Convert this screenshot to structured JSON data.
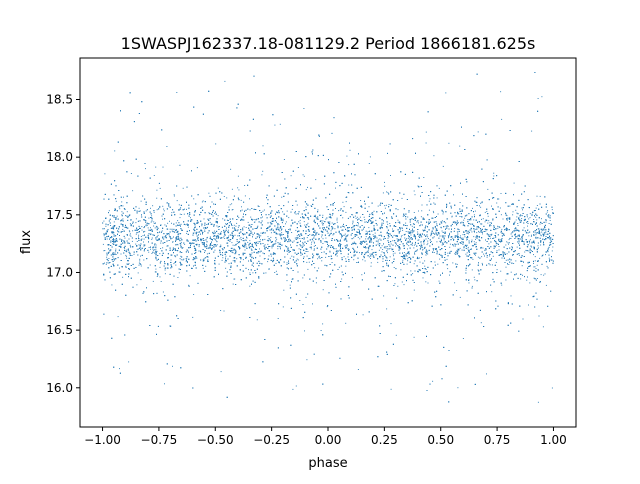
{
  "chart_data": {
    "type": "scatter",
    "title": "1SWASPJ162337.18-081129.2 Period 1866181.625s",
    "xlabel": "phase",
    "ylabel": "flux",
    "xlim": [
      -1.1,
      1.1
    ],
    "ylim": [
      15.66,
      18.86
    ],
    "x_ticks": [
      -1.0,
      -0.75,
      -0.5,
      -0.25,
      0.0,
      0.25,
      0.5,
      0.75,
      1.0
    ],
    "x_tick_labels": [
      "−1.00",
      "−0.75",
      "−0.50",
      "−0.25",
      "0.00",
      "0.25",
      "0.50",
      "0.75",
      "1.00"
    ],
    "y_ticks": [
      16.0,
      16.5,
      17.0,
      17.5,
      18.0,
      18.5
    ],
    "y_tick_labels": [
      "16.0",
      "16.5",
      "17.0",
      "17.5",
      "18.0",
      "18.5"
    ],
    "grid": false,
    "legend": "none",
    "point_color": "#1f77b4",
    "series": [
      {
        "x_range": [
          -1.0,
          1.0
        ],
        "y_center": 17.3,
        "y_core_range": [
          17.0,
          17.6
        ],
        "y_range": [
          15.85,
          18.75
        ],
        "approx_points": 30000
      }
    ]
  }
}
